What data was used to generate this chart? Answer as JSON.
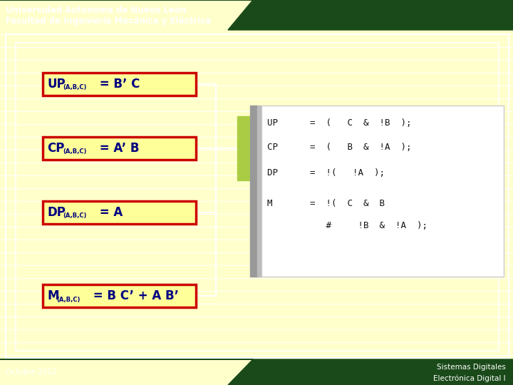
{
  "bg_color": "#FFFFCC",
  "header_bg": "#1A4A1A",
  "header_text_color": "#FFFFFF",
  "header_line1": "Universidad Autónoma de Nuevo León",
  "header_line2": "Facultad de Ingeniería Mecánica y Eléctrica",
  "footer_bg": "#1A4A1A",
  "footer_left": "Octubre 2012",
  "footer_text_color": "#FFFFFF",
  "box_border_color": "#CC0000",
  "box_bg_color": "#FFFF99",
  "box_text_color": "#000080",
  "labels": [
    {
      "main": "UP",
      "sub": "(A,B,C)",
      "expr": " = B’ C"
    },
    {
      "main": "CP",
      "sub": "(A,B,C)",
      "expr": " = A’ B"
    },
    {
      "main": "DP",
      "sub": "(A,B,C)",
      "expr": " = A"
    },
    {
      "main": "M",
      "sub": "(A,B,C)",
      "expr": " = B C’ + A B’"
    }
  ],
  "code_line1": "UP      =  (   C  &  !B  );",
  "code_line2": "CP      =  (   B  &  !A  );",
  "code_line3": "DP      =  !(   !A  );",
  "code_line4": "M       =  !(  C  &  B",
  "code_line5": "           #     !B  &  !A  );",
  "line_color": "#FFFFFF",
  "green_box_color": "#AACC44",
  "gray_color": "#999999",
  "gray_color2": "#BBBBBB"
}
